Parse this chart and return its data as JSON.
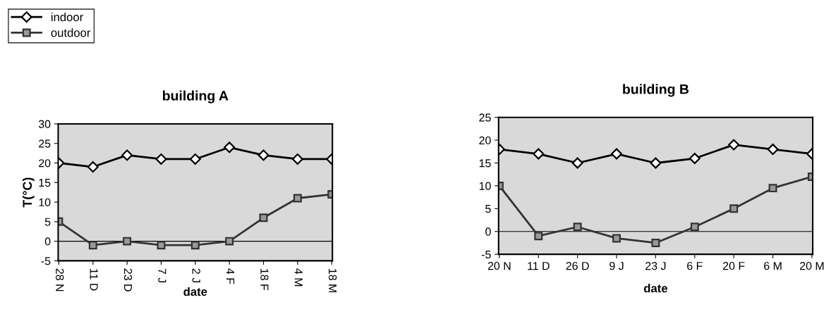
{
  "chart_data": [
    {
      "type": "line",
      "title": "building A",
      "xlabel": "date",
      "ylabel": "T(°C)",
      "categories": [
        "28 N",
        "11 D",
        "23 D",
        "7 J",
        "2 J",
        "4 F",
        "18 F",
        "4 M",
        "18 M"
      ],
      "series": [
        {
          "name": "indoor",
          "color": "#000000",
          "marker": "diamond",
          "values": [
            20,
            19,
            22,
            21,
            21,
            24,
            22,
            21,
            21
          ]
        },
        {
          "name": "outdoor",
          "color": "#333333",
          "marker": "square",
          "values": [
            5,
            -1,
            0,
            -1,
            -1,
            0,
            6,
            11,
            12
          ]
        }
      ],
      "ylim": [
        -5,
        30
      ],
      "yticks": [
        -5,
        0,
        5,
        10,
        15,
        20,
        25,
        30
      ],
      "ref_lines": [
        {
          "axis": "y",
          "value": 0
        }
      ],
      "grid": false,
      "legend": "top left",
      "line_style": "solid"
    },
    {
      "type": "line",
      "title": "building B",
      "xlabel": "date",
      "categories": [
        "20 N",
        "11 D",
        "26 D",
        "9 J",
        "23 J",
        "6 F",
        "20 F",
        "6 M",
        "20 M"
      ],
      "series": [
        {
          "color": "#000000",
          "marker": "diamond",
          "values": [
            18,
            17,
            15,
            17,
            15,
            16,
            19,
            18,
            17
          ]
        },
        {
          "color": "#333333",
          "marker": "square",
          "values": [
            10,
            -1,
            1,
            -1.5,
            -2.5,
            1,
            5,
            9.5,
            12
          ]
        }
      ],
      "ylim": [
        -5,
        25
      ],
      "yticks": [
        -5,
        0,
        5,
        10,
        15,
        20,
        25
      ],
      "ref_lines": [
        {
          "axis": "y",
          "value": 0
        }
      ],
      "grid": false,
      "line_style": "solid"
    }
  ]
}
